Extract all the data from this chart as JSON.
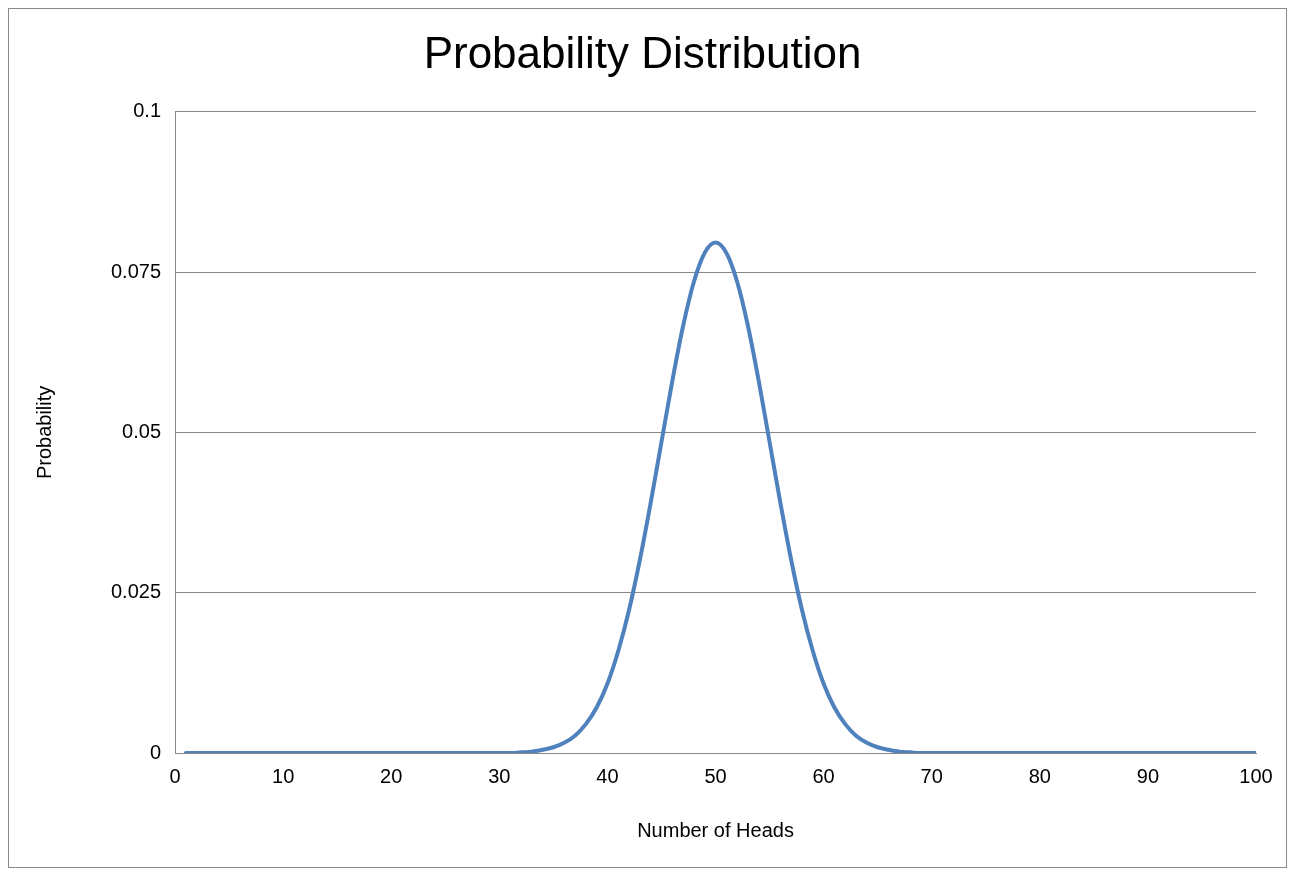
{
  "chart_data": {
    "type": "line",
    "title": "Probability Distribution",
    "xlabel": "Number of Heads",
    "ylabel": "Probability",
    "xlim": [
      0,
      100
    ],
    "xticks": [
      0,
      10,
      20,
      30,
      40,
      50,
      60,
      70,
      80,
      90,
      100
    ],
    "ylim": [
      0,
      0.1
    ],
    "yticks": [
      0,
      0.025,
      0.05,
      0.075,
      0.1
    ],
    "grid": "y",
    "legend": false,
    "marker": "none",
    "line_style": "solid",
    "series": [
      {
        "color": "#4f81bd",
        "x": [
          1,
          10,
          20,
          30,
          31,
          32,
          33,
          34,
          35,
          36,
          37,
          38,
          39,
          40,
          41,
          42,
          43,
          44,
          45,
          46,
          47,
          48,
          49,
          50,
          51,
          52,
          53,
          54,
          55,
          56,
          57,
          58,
          59,
          60,
          61,
          62,
          63,
          64,
          65,
          66,
          67,
          68,
          69,
          70,
          80,
          90,
          100
        ],
        "values": [
          0,
          0,
          0,
          0,
          0,
          0.0001,
          0.0002,
          0.0005,
          0.0009,
          0.0016,
          0.0027,
          0.0045,
          0.0071,
          0.0108,
          0.0159,
          0.0223,
          0.0301,
          0.039,
          0.0485,
          0.058,
          0.0666,
          0.0735,
          0.078,
          0.0796,
          0.078,
          0.0735,
          0.0666,
          0.058,
          0.0485,
          0.039,
          0.0301,
          0.0223,
          0.0159,
          0.0108,
          0.0071,
          0.0045,
          0.0027,
          0.0016,
          0.0009,
          0.0005,
          0.0002,
          0.0001,
          0,
          0,
          0,
          0,
          0
        ]
      }
    ]
  }
}
